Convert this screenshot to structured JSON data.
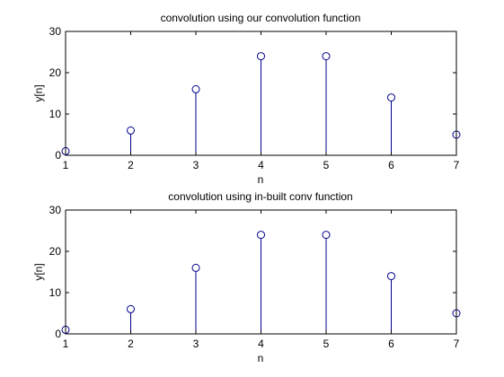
{
  "figure": {
    "background": "#ffffff",
    "stem_color": "#00008b"
  },
  "chart_data": [
    {
      "type": "stem",
      "title": "convolution using our convolution function",
      "xlabel": "n",
      "ylabel": "y[n]",
      "xlim": [
        1,
        7
      ],
      "ylim": [
        0,
        30
      ],
      "xticks": [
        "1",
        "2",
        "3",
        "4",
        "5",
        "6",
        "7"
      ],
      "yticks": [
        "0",
        "10",
        "20",
        "30"
      ],
      "grid": false,
      "marker": "circle",
      "x": [
        1,
        2,
        3,
        4,
        5,
        6,
        7
      ],
      "values": [
        1,
        6,
        16,
        24,
        24,
        14,
        5
      ]
    },
    {
      "type": "stem",
      "title": "convolution using in-built conv function",
      "xlabel": "n",
      "ylabel": "y[n]",
      "xlim": [
        1,
        7
      ],
      "ylim": [
        0,
        30
      ],
      "xticks": [
        "1",
        "2",
        "3",
        "4",
        "5",
        "6",
        "7"
      ],
      "yticks": [
        "0",
        "10",
        "20",
        "30"
      ],
      "grid": false,
      "marker": "circle",
      "x": [
        1,
        2,
        3,
        4,
        5,
        6,
        7
      ],
      "values": [
        1,
        6,
        16,
        24,
        24,
        14,
        5
      ]
    }
  ]
}
